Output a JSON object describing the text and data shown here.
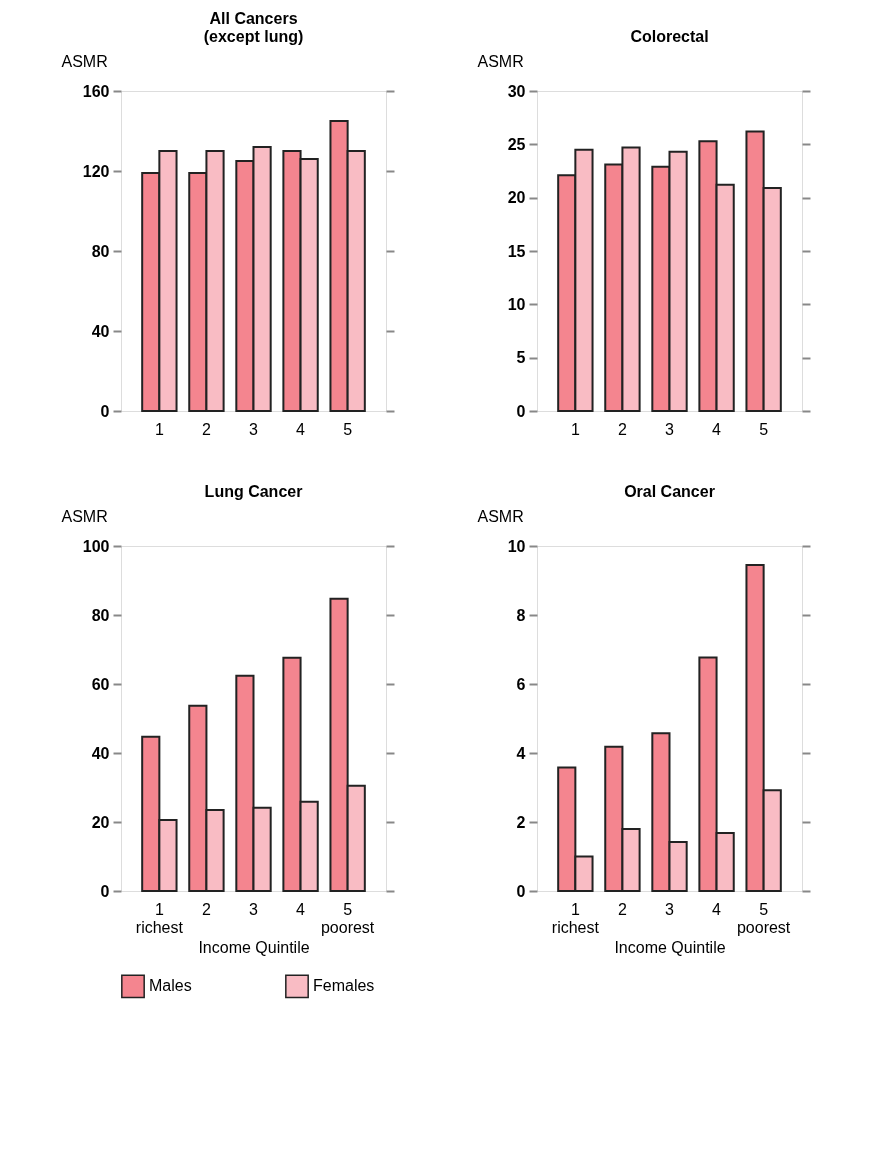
{
  "chart_data": [
    {
      "type": "bar",
      "title": "All Cancers\n(except lung)",
      "ylabel": "ASMR",
      "categories": [
        "1",
        "2",
        "3",
        "4",
        "5"
      ],
      "ylim": [
        0,
        160
      ],
      "yticks": [
        0,
        40,
        80,
        120,
        160
      ],
      "grid": false,
      "legend": "bottom",
      "series": [
        {
          "name": "Males",
          "color": "#f4858f",
          "values": [
            119,
            119,
            125,
            130,
            145
          ]
        },
        {
          "name": "Females",
          "color": "#f9bcc4",
          "values": [
            130,
            130,
            132,
            126,
            130
          ]
        }
      ]
    },
    {
      "type": "bar",
      "title": "Colorectal",
      "ylabel": "ASMR",
      "categories": [
        "1",
        "2",
        "3",
        "4",
        "5"
      ],
      "ylim": [
        0,
        30
      ],
      "yticks": [
        0,
        5,
        10,
        15,
        20,
        25,
        30
      ],
      "grid": false,
      "legend": "bottom",
      "series": [
        {
          "name": "Males",
          "color": "#f4858f",
          "values": [
            22.1,
            23.1,
            22.9,
            25.3,
            26.2
          ]
        },
        {
          "name": "Females",
          "color": "#f9bcc4",
          "values": [
            24.5,
            24.7,
            24.3,
            21.2,
            20.9
          ]
        }
      ]
    },
    {
      "type": "bar",
      "title": "Lung Cancer",
      "ylabel": "ASMR",
      "xlabel": "Income Quintile",
      "categories": [
        "1\nrichest",
        "2",
        "3",
        "4",
        "5\npoorest"
      ],
      "ylim": [
        0,
        100
      ],
      "yticks": [
        0,
        20,
        40,
        60,
        80,
        100
      ],
      "grid": false,
      "legend": "bottom",
      "series": [
        {
          "name": "Males",
          "color": "#f4858f",
          "values": [
            44.7,
            53.7,
            62.4,
            67.6,
            84.7
          ]
        },
        {
          "name": "Females",
          "color": "#f9bcc4",
          "values": [
            20.6,
            23.5,
            24.1,
            25.9,
            30.5
          ]
        }
      ]
    },
    {
      "type": "bar",
      "title": "Oral Cancer",
      "ylabel": "ASMR",
      "xlabel": "Income Quintile",
      "categories": [
        "1\nrichest",
        "2",
        "3",
        "4",
        "5\npoorest"
      ],
      "ylim": [
        0,
        10
      ],
      "yticks": [
        0,
        2,
        4,
        6,
        8,
        10
      ],
      "grid": false,
      "legend": "bottom",
      "series": [
        {
          "name": "Males",
          "color": "#f4858f",
          "values": [
            3.58,
            4.18,
            4.57,
            6.77,
            9.45
          ]
        },
        {
          "name": "Females",
          "color": "#f9bcc4",
          "values": [
            1.0,
            1.8,
            1.42,
            1.68,
            2.92
          ]
        }
      ]
    }
  ]
}
